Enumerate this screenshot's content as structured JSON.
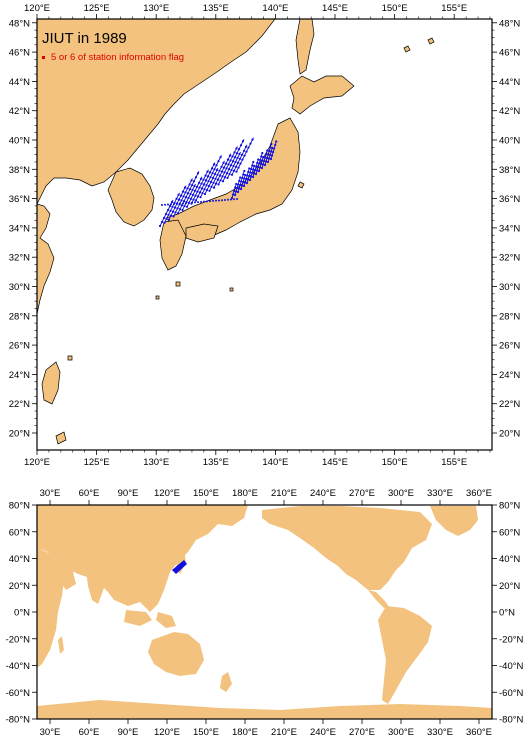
{
  "map_top": {
    "title": "JIUT in 1989",
    "legend_label": "5 or 6 of station information flag",
    "legend_color": "#e00000",
    "station_color": "#1010e0",
    "land_color": "#f2c27e",
    "lon_ticks": [
      "120°E",
      "125°E",
      "130°E",
      "135°E",
      "140°E",
      "145°E",
      "150°E",
      "155°E"
    ],
    "lat_ticks": [
      "20°N",
      "22°N",
      "24°N",
      "26°N",
      "28°N",
      "30°N",
      "32°N",
      "34°N",
      "36°N",
      "38°N",
      "40°N",
      "42°N",
      "44°N",
      "46°N",
      "48°N"
    ],
    "lon_range": [
      120,
      157
    ],
    "lat_range": [
      19,
      48
    ]
  },
  "map_bottom": {
    "lon_ticks": [
      "30°E",
      "60°E",
      "90°E",
      "120°E",
      "150°E",
      "180°E",
      "210°E",
      "240°E",
      "270°E",
      "300°E",
      "330°E",
      "360°E"
    ],
    "lat_ticks": [
      "-80°N",
      "-60°N",
      "-40°N",
      "-20°N",
      "0°N",
      "20°N",
      "40°N",
      "60°N",
      "80°N"
    ],
    "lon_range": [
      20,
      370
    ],
    "lat_range": [
      -80,
      80
    ]
  }
}
